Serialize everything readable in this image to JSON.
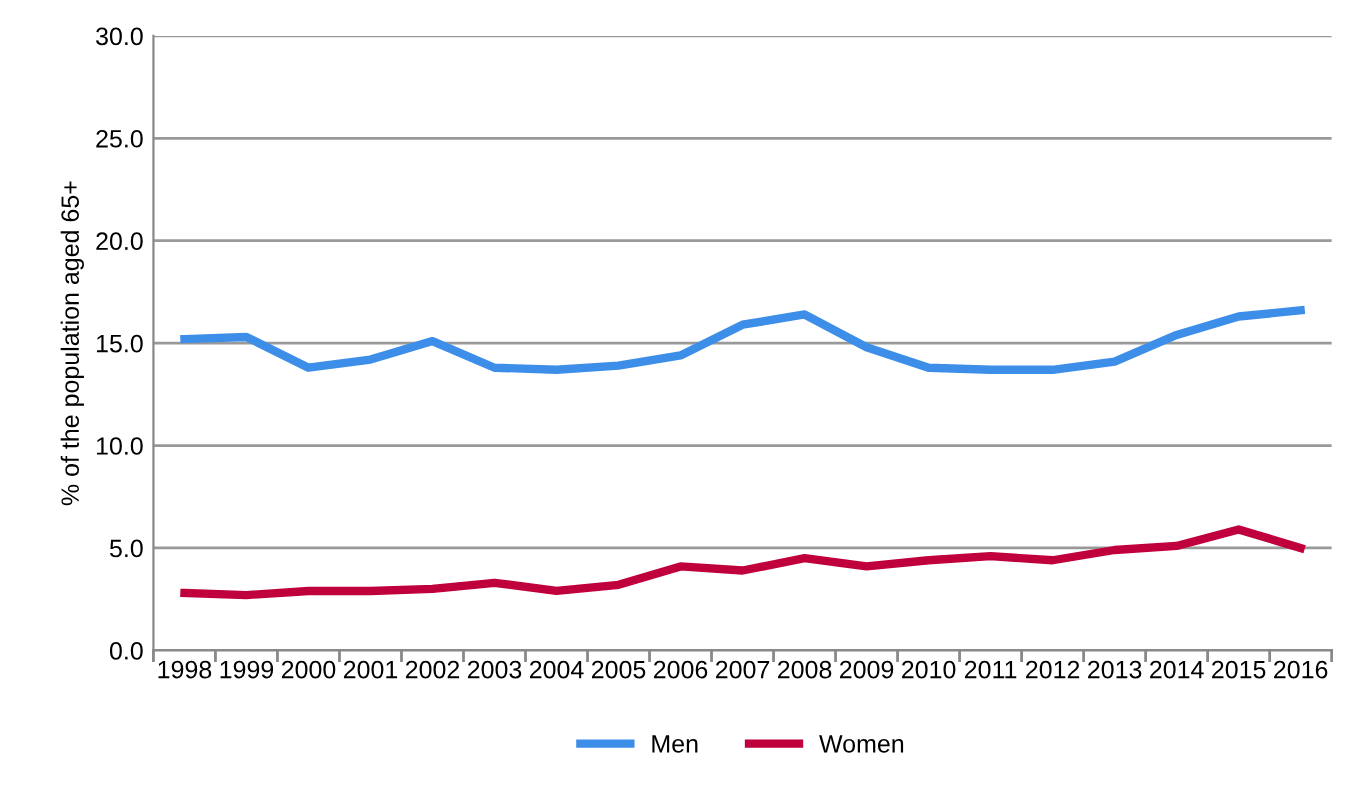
{
  "chart_data": {
    "type": "line",
    "ylabel": "% of the population aged 65+",
    "categories": [
      "1998",
      "1999",
      "2000",
      "2001",
      "2002",
      "2003",
      "2004",
      "2005",
      "2006",
      "2007",
      "2008",
      "2009",
      "2010",
      "2011",
      "2012",
      "2013",
      "2014",
      "2015",
      "2016"
    ],
    "series": [
      {
        "name": "Men",
        "color": "#3d8ee8",
        "values": [
          15.2,
          15.3,
          13.8,
          14.2,
          15.1,
          13.8,
          13.7,
          13.9,
          14.4,
          15.9,
          16.4,
          14.8,
          13.8,
          13.7,
          13.7,
          14.1,
          15.4,
          16.3,
          16.6
        ]
      },
      {
        "name": "Women",
        "color": "#c0003c",
        "values": [
          2.8,
          2.7,
          2.9,
          2.9,
          3.0,
          3.3,
          2.9,
          3.2,
          4.1,
          3.9,
          4.5,
          4.1,
          4.4,
          4.6,
          4.4,
          4.9,
          5.1,
          5.9,
          5.0
        ]
      }
    ],
    "ylim": [
      0,
      30
    ],
    "yticks": [
      {
        "value": 0,
        "label": "0.0"
      },
      {
        "value": 5,
        "label": "5.0"
      },
      {
        "value": 10,
        "label": "10.0"
      },
      {
        "value": 15,
        "label": "15.0"
      },
      {
        "value": 20,
        "label": "20.0"
      },
      {
        "value": 25,
        "label": "25.0"
      },
      {
        "value": 30,
        "label": "30.0"
      }
    ],
    "grid": "y",
    "legend": "bottom",
    "marker": "none",
    "line_style": "solid"
  }
}
